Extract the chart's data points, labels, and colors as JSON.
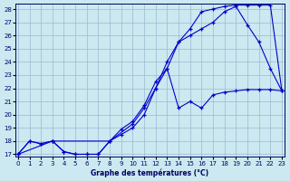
{
  "background_color": "#cce8f0",
  "grid_color": "#99bbd0",
  "line_color": "#0000cc",
  "xlim": [
    -0.2,
    23.2
  ],
  "ylim": [
    16.8,
    28.4
  ],
  "yticks": [
    17,
    18,
    19,
    20,
    21,
    22,
    23,
    24,
    25,
    26,
    27,
    28
  ],
  "xticks": [
    0,
    1,
    2,
    3,
    4,
    5,
    6,
    7,
    8,
    9,
    10,
    11,
    12,
    13,
    14,
    15,
    16,
    17,
    18,
    19,
    20,
    21,
    22,
    23
  ],
  "xlabel": "Graphe des températures (°C)",
  "line1_x": [
    0,
    1,
    2,
    3,
    4,
    5,
    6,
    7,
    8,
    9,
    10,
    11,
    12,
    13,
    14,
    15,
    16,
    17,
    18,
    19,
    20,
    21,
    22,
    23
  ],
  "line1_y": [
    17.0,
    18.0,
    17.8,
    18.0,
    17.2,
    17.0,
    17.0,
    17.0,
    18.0,
    18.9,
    19.5,
    20.7,
    22.5,
    23.5,
    20.5,
    21.0,
    20.5,
    21.5,
    21.7,
    21.8,
    21.9,
    21.9,
    21.9,
    21.8
  ],
  "line2_x": [
    0,
    1,
    2,
    3,
    4,
    5,
    6,
    7,
    8,
    9,
    10,
    11,
    12,
    13,
    14,
    15,
    16,
    17,
    18,
    19,
    20,
    21,
    22,
    23
  ],
  "line2_y": [
    17.0,
    18.0,
    17.8,
    18.0,
    17.2,
    17.0,
    17.0,
    17.0,
    18.0,
    18.5,
    19.0,
    20.0,
    22.0,
    24.0,
    25.5,
    26.0,
    26.5,
    27.0,
    27.8,
    28.2,
    26.8,
    25.5,
    23.5,
    21.8
  ],
  "line3_x": [
    0,
    3,
    8,
    10,
    11,
    12,
    13,
    14,
    15,
    16,
    17,
    18,
    19,
    20,
    21,
    22,
    23
  ],
  "line3_y": [
    17.0,
    18.0,
    18.0,
    19.3,
    20.5,
    22.0,
    23.5,
    25.5,
    26.5,
    27.8,
    28.0,
    28.2,
    28.3,
    28.3,
    28.3,
    28.3,
    21.8
  ]
}
